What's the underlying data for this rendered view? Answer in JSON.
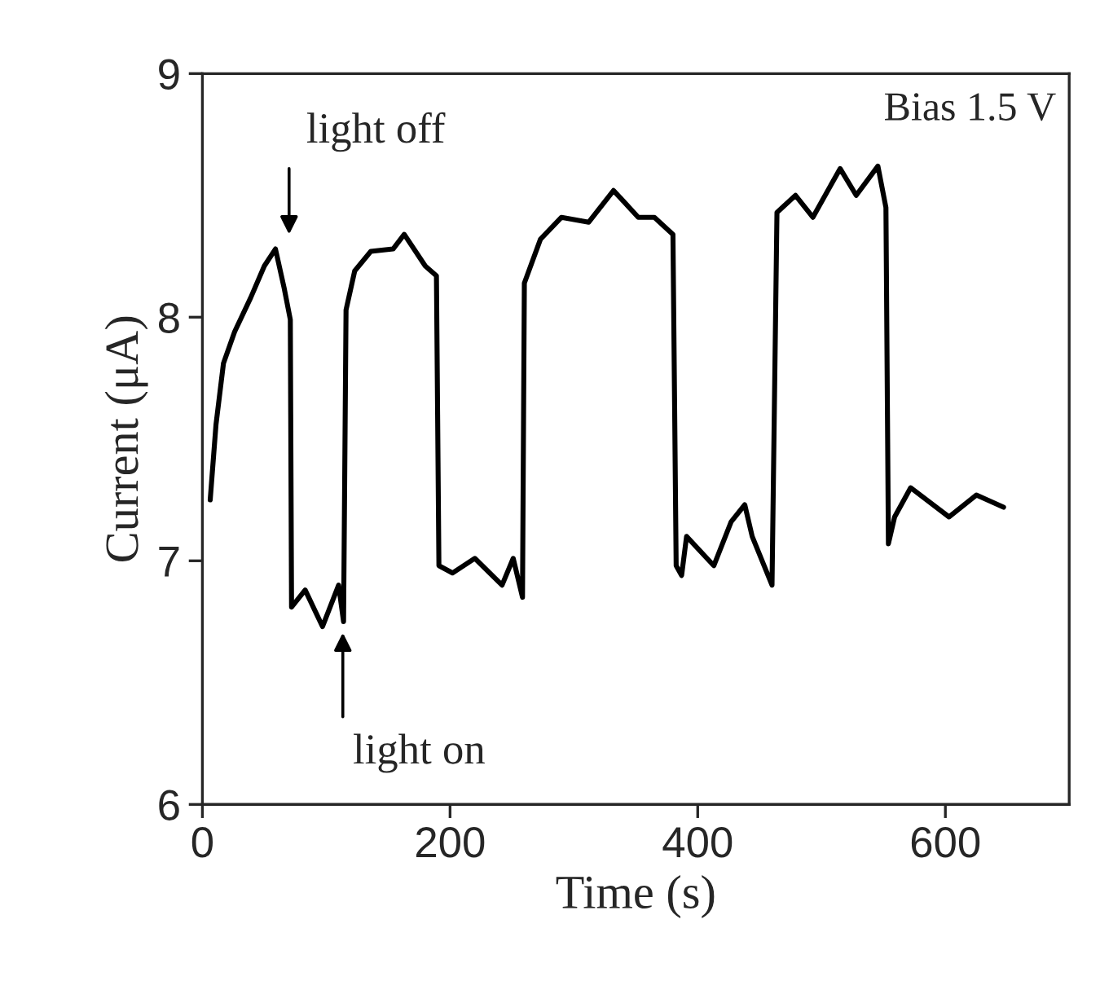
{
  "chart_data": {
    "type": "line",
    "xlabel": "Time (s)",
    "ylabel": "Current (μA)",
    "xlim": [
      0,
      700
    ],
    "xticks": [
      0,
      200,
      400,
      600
    ],
    "ylim": [
      6,
      9
    ],
    "yticks": [
      6,
      7,
      8,
      9
    ],
    "grid": false,
    "legend": false,
    "marker": "none",
    "line_style": "solid",
    "annotations": [
      "light off",
      "light on",
      "Bias 1.5 V"
    ],
    "series": [
      {
        "color": "#000000",
        "x": [
          6.3,
          11,
          17,
          26,
          39,
          50,
          59,
          66,
          71,
          72,
          83,
          97,
          110,
          114,
          116,
          123,
          136,
          154,
          163,
          180,
          189,
          191,
          202,
          220,
          242,
          251,
          258.5,
          260,
          273,
          290,
          312,
          332,
          352,
          365,
          380,
          382.6,
          387,
          391,
          413,
          427,
          438,
          444,
          460,
          464,
          479,
          493,
          515,
          528,
          545.5,
          552,
          554,
          559,
          572,
          603,
          625,
          647
        ],
        "values": [
          7.25,
          7.56,
          7.81,
          7.94,
          8.08,
          8.21,
          8.28,
          8.12,
          7.99,
          6.81,
          6.88,
          6.73,
          6.9,
          6.75,
          8.03,
          8.19,
          8.27,
          8.28,
          8.34,
          8.21,
          8.17,
          6.98,
          6.95,
          7.01,
          6.9,
          7.01,
          6.85,
          8.14,
          8.32,
          8.41,
          8.39,
          8.52,
          8.41,
          8.41,
          8.34,
          6.98,
          6.94,
          7.1,
          6.98,
          7.16,
          7.23,
          7.1,
          6.9,
          8.43,
          8.5,
          8.41,
          8.61,
          8.5,
          8.62,
          8.45,
          7.07,
          7.18,
          7.3,
          7.18,
          7.27,
          7.22
        ]
      }
    ]
  }
}
